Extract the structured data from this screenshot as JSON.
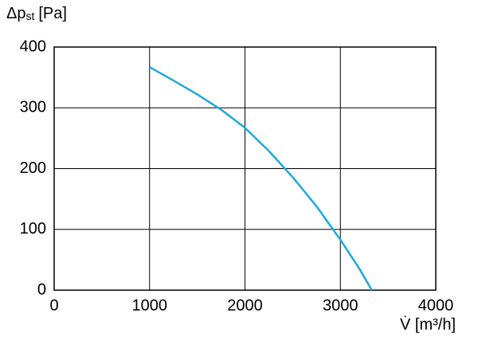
{
  "chart_data": {
    "type": "line",
    "y_label": {
      "symbol": "Δp",
      "subscript": "st",
      "unit": "[Pa]"
    },
    "x_label": "V̇ [m³/h]",
    "x": [
      1000,
      1250,
      1500,
      1750,
      2000,
      2250,
      2500,
      2750,
      3000,
      3200,
      3330
    ],
    "series": [
      {
        "color": "#1ea9dc",
        "values": [
          367,
          345,
          322,
          297,
          267,
          229,
          186,
          138,
          83,
          35,
          0
        ]
      }
    ],
    "xlim": [
      0,
      4000
    ],
    "xticks": [
      0,
      1000,
      2000,
      3000,
      4000
    ],
    "ylim": [
      0,
      400
    ],
    "yticks": [
      0,
      100,
      200,
      300,
      400
    ],
    "grid": true
  }
}
